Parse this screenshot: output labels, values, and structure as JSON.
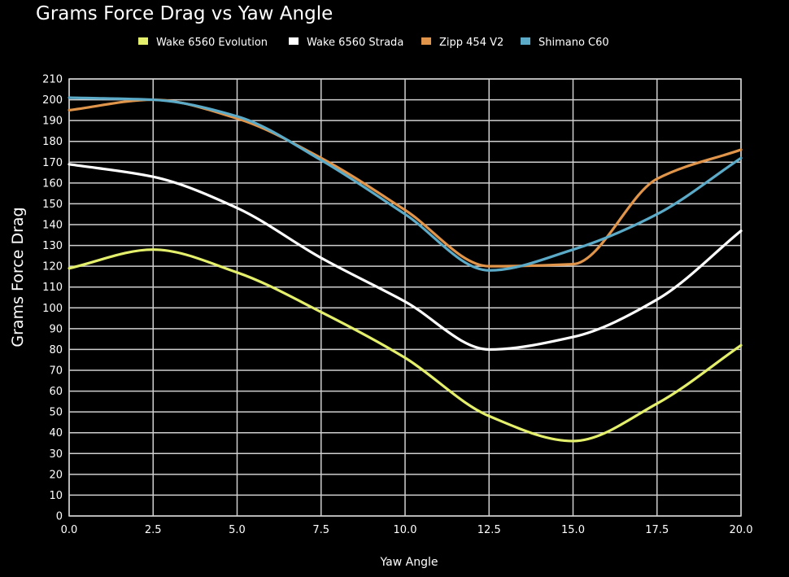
{
  "chart_data": {
    "type": "line",
    "title": "Grams Force Drag vs Yaw Angle",
    "xlabel": "Yaw Angle",
    "ylabel": "Grams Force Drag",
    "xlim": [
      0,
      20
    ],
    "ylim": [
      0,
      210
    ],
    "xticks": [
      "0.0",
      "2.5",
      "5.0",
      "7.5",
      "10.0",
      "12.5",
      "15.0",
      "17.5",
      "20.0"
    ],
    "yticks": [
      "0",
      "10",
      "20",
      "30",
      "40",
      "50",
      "60",
      "70",
      "80",
      "90",
      "100",
      "110",
      "120",
      "130",
      "140",
      "150",
      "160",
      "170",
      "180",
      "190",
      "200",
      "210"
    ],
    "grid": true,
    "legend_position": "top",
    "x": [
      0,
      2.5,
      5,
      7.5,
      10,
      12.5,
      15,
      17.5,
      20
    ],
    "series": [
      {
        "name": "Wake 6560 Evolution",
        "color": "#e4ef6b",
        "values": [
          119,
          128,
          117,
          98,
          76,
          48,
          36,
          54,
          82
        ]
      },
      {
        "name": "Wake 6560 Strada",
        "color": "#ffffff",
        "values": [
          169,
          163,
          148,
          124,
          103,
          80,
          86,
          104,
          137
        ]
      },
      {
        "name": "Zipp 454 V2",
        "color": "#e0954a",
        "values": [
          195,
          200,
          191,
          172,
          147,
          120,
          121,
          162,
          176
        ]
      },
      {
        "name": "Shimano C60",
        "color": "#5aaac8",
        "values": [
          201,
          200,
          192,
          171,
          145,
          118,
          128,
          145,
          172
        ]
      }
    ]
  }
}
